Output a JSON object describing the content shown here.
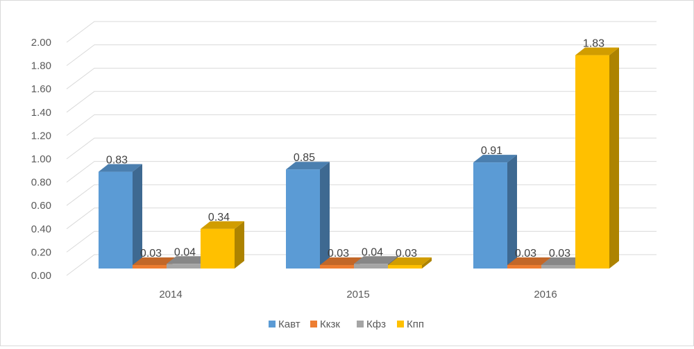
{
  "chart_data": {
    "type": "bar",
    "title": "",
    "xlabel": "",
    "ylabel": "",
    "categories": [
      "2014",
      "2015",
      "2016"
    ],
    "series": [
      {
        "name": "Кавт",
        "color": "#5b9bd5",
        "values": [
          0.83,
          0.85,
          0.91
        ],
        "labels": [
          "0.83",
          "0.85",
          "0.91"
        ]
      },
      {
        "name": "Ккзк",
        "color": "#ed7d31",
        "values": [
          0.03,
          0.03,
          0.03
        ],
        "labels": [
          "0.03",
          "0.03",
          "0.03"
        ]
      },
      {
        "name": "Кфз",
        "color": "#a5a5a5",
        "values": [
          0.04,
          0.04,
          0.03
        ],
        "labels": [
          "0.04",
          "0.04",
          "0.03"
        ]
      },
      {
        "name": "Кпп",
        "color": "#ffc000",
        "values": [
          0.34,
          0.03,
          1.83
        ],
        "labels": [
          "0.34",
          "0.03",
          "1.83"
        ]
      }
    ],
    "ylim": [
      0,
      2.0
    ],
    "yticks": [
      "0.00",
      "0.20",
      "0.40",
      "0.60",
      "0.80",
      "1.00",
      "1.20",
      "1.40",
      "1.60",
      "1.80",
      "2.00"
    ],
    "grid": true,
    "style": "3d-clustered-column",
    "legend_position": "bottom"
  }
}
